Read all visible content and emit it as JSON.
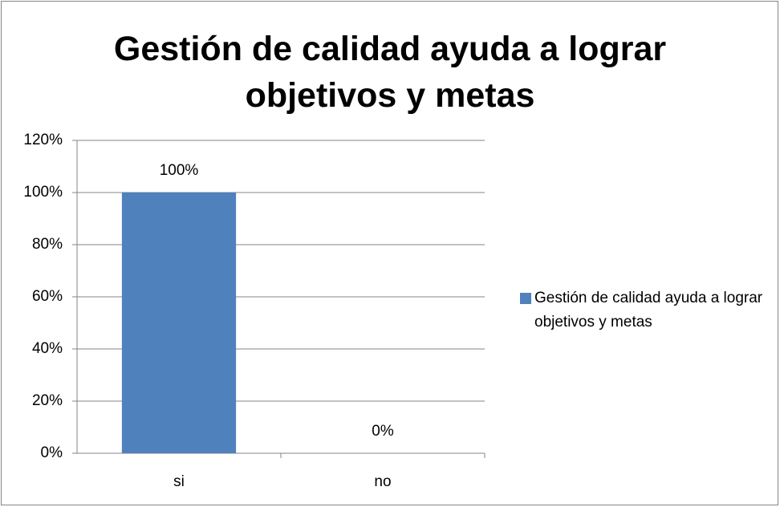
{
  "chart_data": {
    "type": "bar",
    "title": "Gestión de calidad ayuda a lograr objetivos y metas",
    "categories": [
      "si",
      "no"
    ],
    "series": [
      {
        "name": "Gestión de calidad ayuda a lograr objetivos y metas",
        "color": "#4f81bd",
        "values": [
          100,
          0
        ],
        "value_labels": [
          "100%",
          "0%"
        ]
      }
    ],
    "ylim": [
      0,
      120
    ],
    "yticks": [
      {
        "value": 0,
        "label": "0%"
      },
      {
        "value": 20,
        "label": "20%"
      },
      {
        "value": 40,
        "label": "40%"
      },
      {
        "value": 60,
        "label": "60%"
      },
      {
        "value": 80,
        "label": "80%"
      },
      {
        "value": 100,
        "label": "100%"
      },
      {
        "value": 120,
        "label": "120%"
      }
    ],
    "grid": true,
    "legend": "right"
  }
}
